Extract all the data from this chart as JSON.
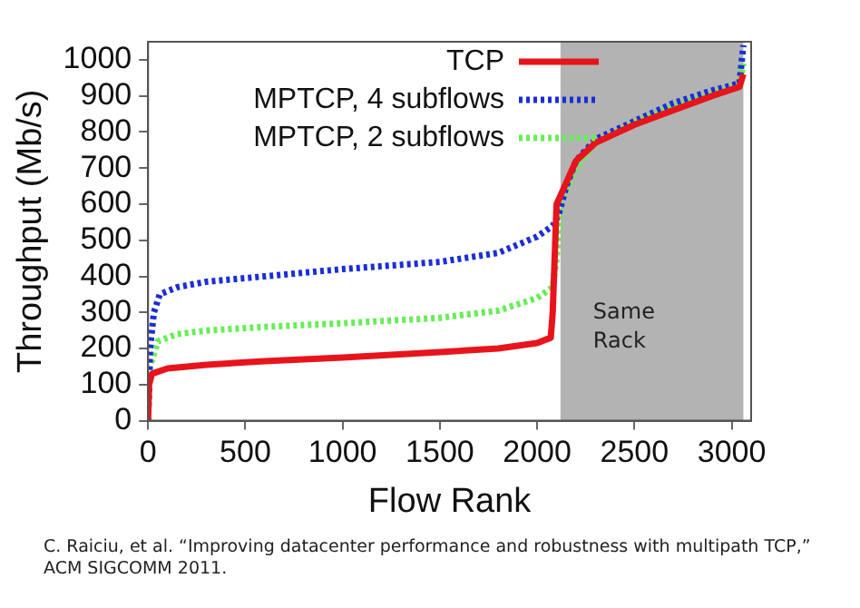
{
  "chart_data": {
    "type": "line",
    "xlabel": "Flow Rank",
    "ylabel": "Throughput (Mb/s)",
    "xlim": [
      0,
      3100
    ],
    "xticks": [
      0,
      500,
      1000,
      1500,
      2000,
      2500,
      3000
    ],
    "ylim": [
      0,
      1050
    ],
    "yticks": [
      0,
      100,
      200,
      300,
      400,
      500,
      600,
      700,
      800,
      900,
      1000
    ],
    "grid": false,
    "legend": "top right",
    "marker": "none",
    "bands": [
      {
        "axis": "x",
        "from": 2120,
        "to": 3060,
        "label": "Same Rack",
        "color": "#b3b3b3"
      }
    ],
    "annotations": [
      "C. Raiciu, et al. “Improving datacenter performance and robustness with multipath TCP,” ACM SIGCOMM 2011."
    ],
    "series": [
      {
        "name": "TCP",
        "color": "#e8141c",
        "line_style": "solid",
        "x": [
          0,
          5,
          20,
          100,
          300,
          600,
          1000,
          1500,
          1800,
          2000,
          2070,
          2080,
          2090,
          2100,
          2150,
          2200,
          2300,
          2500,
          2700,
          2900,
          3040,
          3060
        ],
        "values": [
          0,
          100,
          130,
          145,
          155,
          165,
          175,
          190,
          200,
          215,
          230,
          300,
          450,
          600,
          660,
          720,
          770,
          820,
          860,
          900,
          925,
          960
        ]
      },
      {
        "name": "MPTCP, 4 subflows",
        "color": "#1a2ed8",
        "line_style": "dotted",
        "x": [
          0,
          10,
          30,
          60,
          150,
          300,
          600,
          1000,
          1500,
          1800,
          2000,
          2080,
          2110,
          2150,
          2200,
          2300,
          2500,
          2700,
          2900,
          3040,
          3060
        ],
        "values": [
          0,
          200,
          300,
          350,
          370,
          385,
          400,
          420,
          440,
          465,
          510,
          540,
          570,
          650,
          720,
          780,
          830,
          880,
          915,
          935,
          1040
        ]
      },
      {
        "name": "MPTCP, 2 subflows",
        "color": "#66ee55",
        "line_style": "dotted",
        "x": [
          0,
          10,
          50,
          150,
          300,
          600,
          1000,
          1500,
          1800,
          2000,
          2080,
          2100,
          2120,
          2200,
          2300,
          2500,
          2700,
          2900,
          3040,
          3060
        ],
        "values": [
          0,
          150,
          220,
          240,
          250,
          260,
          270,
          285,
          305,
          340,
          370,
          450,
          600,
          700,
          770,
          825,
          870,
          905,
          930,
          990
        ]
      }
    ]
  }
}
